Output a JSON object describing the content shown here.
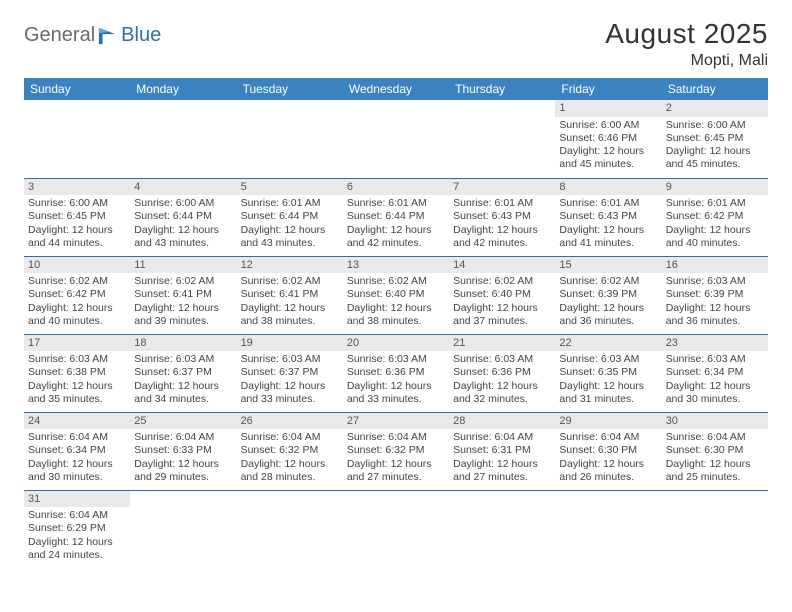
{
  "logo": {
    "text1": "General",
    "text2": "Blue"
  },
  "title": "August 2025",
  "subtitle": "Mopti, Mali",
  "colors": {
    "header_bg": "#3b83c0",
    "header_fg": "#ffffff",
    "rule": "#2f6fa8",
    "daynum_bg": "#e9e9e9",
    "logo_gray": "#6a6a6a",
    "logo_blue": "#2f6fa8"
  },
  "weekdays": [
    "Sunday",
    "Monday",
    "Tuesday",
    "Wednesday",
    "Thursday",
    "Friday",
    "Saturday"
  ],
  "weeks": [
    [
      null,
      null,
      null,
      null,
      null,
      {
        "n": "1",
        "sr": "6:00 AM",
        "ss": "6:46 PM",
        "dl": "12 hours and 45 minutes."
      },
      {
        "n": "2",
        "sr": "6:00 AM",
        "ss": "6:45 PM",
        "dl": "12 hours and 45 minutes."
      }
    ],
    [
      {
        "n": "3",
        "sr": "6:00 AM",
        "ss": "6:45 PM",
        "dl": "12 hours and 44 minutes."
      },
      {
        "n": "4",
        "sr": "6:00 AM",
        "ss": "6:44 PM",
        "dl": "12 hours and 43 minutes."
      },
      {
        "n": "5",
        "sr": "6:01 AM",
        "ss": "6:44 PM",
        "dl": "12 hours and 43 minutes."
      },
      {
        "n": "6",
        "sr": "6:01 AM",
        "ss": "6:44 PM",
        "dl": "12 hours and 42 minutes."
      },
      {
        "n": "7",
        "sr": "6:01 AM",
        "ss": "6:43 PM",
        "dl": "12 hours and 42 minutes."
      },
      {
        "n": "8",
        "sr": "6:01 AM",
        "ss": "6:43 PM",
        "dl": "12 hours and 41 minutes."
      },
      {
        "n": "9",
        "sr": "6:01 AM",
        "ss": "6:42 PM",
        "dl": "12 hours and 40 minutes."
      }
    ],
    [
      {
        "n": "10",
        "sr": "6:02 AM",
        "ss": "6:42 PM",
        "dl": "12 hours and 40 minutes."
      },
      {
        "n": "11",
        "sr": "6:02 AM",
        "ss": "6:41 PM",
        "dl": "12 hours and 39 minutes."
      },
      {
        "n": "12",
        "sr": "6:02 AM",
        "ss": "6:41 PM",
        "dl": "12 hours and 38 minutes."
      },
      {
        "n": "13",
        "sr": "6:02 AM",
        "ss": "6:40 PM",
        "dl": "12 hours and 38 minutes."
      },
      {
        "n": "14",
        "sr": "6:02 AM",
        "ss": "6:40 PM",
        "dl": "12 hours and 37 minutes."
      },
      {
        "n": "15",
        "sr": "6:02 AM",
        "ss": "6:39 PM",
        "dl": "12 hours and 36 minutes."
      },
      {
        "n": "16",
        "sr": "6:03 AM",
        "ss": "6:39 PM",
        "dl": "12 hours and 36 minutes."
      }
    ],
    [
      {
        "n": "17",
        "sr": "6:03 AM",
        "ss": "6:38 PM",
        "dl": "12 hours and 35 minutes."
      },
      {
        "n": "18",
        "sr": "6:03 AM",
        "ss": "6:37 PM",
        "dl": "12 hours and 34 minutes."
      },
      {
        "n": "19",
        "sr": "6:03 AM",
        "ss": "6:37 PM",
        "dl": "12 hours and 33 minutes."
      },
      {
        "n": "20",
        "sr": "6:03 AM",
        "ss": "6:36 PM",
        "dl": "12 hours and 33 minutes."
      },
      {
        "n": "21",
        "sr": "6:03 AM",
        "ss": "6:36 PM",
        "dl": "12 hours and 32 minutes."
      },
      {
        "n": "22",
        "sr": "6:03 AM",
        "ss": "6:35 PM",
        "dl": "12 hours and 31 minutes."
      },
      {
        "n": "23",
        "sr": "6:03 AM",
        "ss": "6:34 PM",
        "dl": "12 hours and 30 minutes."
      }
    ],
    [
      {
        "n": "24",
        "sr": "6:04 AM",
        "ss": "6:34 PM",
        "dl": "12 hours and 30 minutes."
      },
      {
        "n": "25",
        "sr": "6:04 AM",
        "ss": "6:33 PM",
        "dl": "12 hours and 29 minutes."
      },
      {
        "n": "26",
        "sr": "6:04 AM",
        "ss": "6:32 PM",
        "dl": "12 hours and 28 minutes."
      },
      {
        "n": "27",
        "sr": "6:04 AM",
        "ss": "6:32 PM",
        "dl": "12 hours and 27 minutes."
      },
      {
        "n": "28",
        "sr": "6:04 AM",
        "ss": "6:31 PM",
        "dl": "12 hours and 27 minutes."
      },
      {
        "n": "29",
        "sr": "6:04 AM",
        "ss": "6:30 PM",
        "dl": "12 hours and 26 minutes."
      },
      {
        "n": "30",
        "sr": "6:04 AM",
        "ss": "6:30 PM",
        "dl": "12 hours and 25 minutes."
      }
    ],
    [
      {
        "n": "31",
        "sr": "6:04 AM",
        "ss": "6:29 PM",
        "dl": "12 hours and 24 minutes."
      },
      null,
      null,
      null,
      null,
      null,
      null
    ]
  ],
  "labels": {
    "sunrise": "Sunrise:",
    "sunset": "Sunset:",
    "daylight": "Daylight:"
  }
}
